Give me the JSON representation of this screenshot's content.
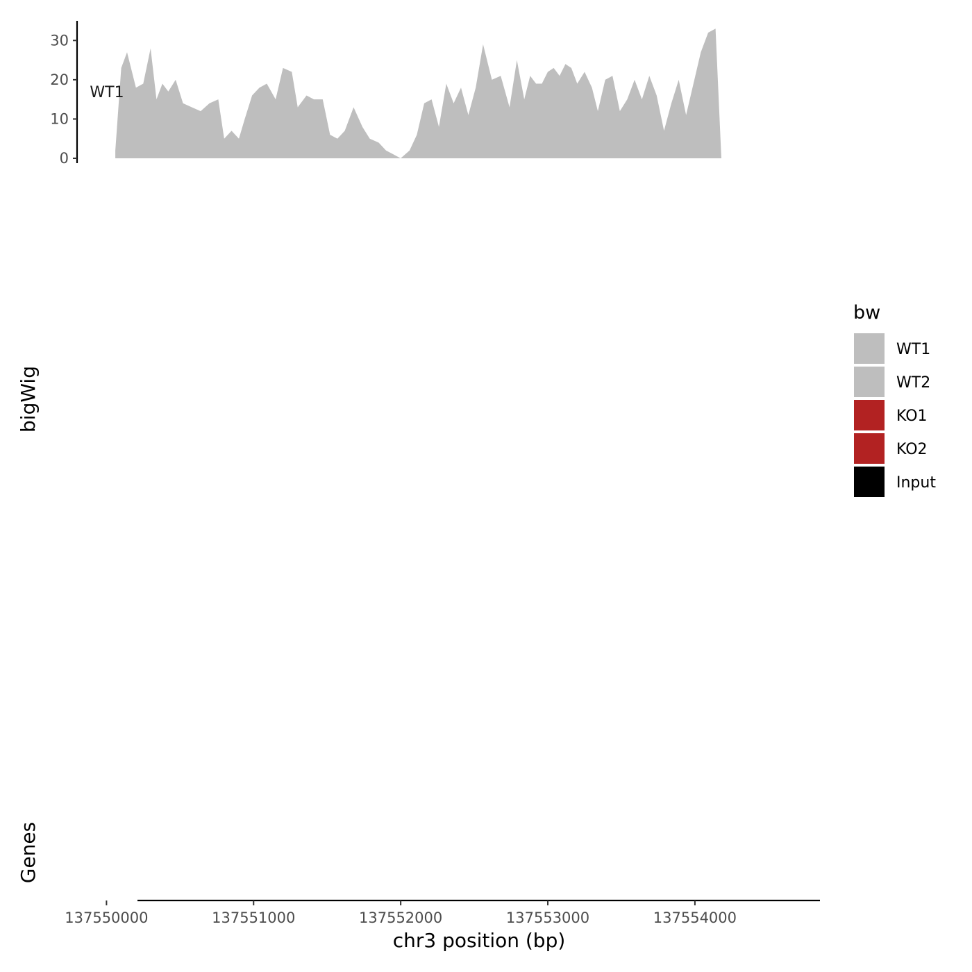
{
  "chart_data": {
    "type": "area",
    "title": "",
    "xlabel": "chr3 position (bp)",
    "ylabel": "bigWig",
    "xlim": [
      137549800,
      137554850
    ],
    "ylim": [
      0,
      35
    ],
    "x_ticks": [
      137550000,
      137551000,
      137552000,
      137553000,
      137554000
    ],
    "x_tick_labels": [
      "137550000",
      "137551000",
      "137552000",
      "137553000",
      "137554000"
    ],
    "y_ticks": [
      0,
      10,
      20,
      30
    ],
    "y_tick_labels": [
      "0",
      "10",
      "20",
      "30"
    ],
    "legend": {
      "title": "bw",
      "position": "right",
      "entries": [
        {
          "label": "WT1",
          "color": "#bebebe"
        },
        {
          "label": "WT2",
          "color": "#bebebe"
        },
        {
          "label": "KO1",
          "color": "#b22222"
        },
        {
          "label": "KO2",
          "color": "#b22222"
        },
        {
          "label": "Input",
          "color": "#000000"
        }
      ]
    },
    "series": [
      {
        "name": "WT1",
        "color": "#bebebe",
        "x": [
          137550060,
          137550100,
          137550140,
          137550200,
          137550250,
          137550300,
          137550340,
          137550380,
          137550420,
          137550470,
          137550520,
          137550580,
          137550640,
          137550700,
          137550760,
          137550800,
          137550850,
          137550900,
          137550940,
          137550990,
          137551040,
          137551090,
          137551150,
          137551200,
          137551260,
          137551300,
          137551360,
          137551410,
          137551470,
          137551520,
          137551570,
          137551620,
          137551680,
          137551740,
          137551790,
          137551850,
          137551900,
          137551950,
          137552000,
          137552060,
          137552110,
          137552160,
          137552210,
          137552260,
          137552310,
          137552360,
          137552410,
          137552460,
          137552510,
          137552560,
          137552620,
          137552680,
          137552740,
          137552790,
          137552840,
          137552880,
          137552920,
          137552960,
          137553000,
          137553040,
          137553080,
          137553120,
          137553160,
          137553200,
          137553250,
          137553300,
          137553340,
          137553390,
          137553440,
          137553490,
          137553540,
          137553590,
          137553640,
          137553690,
          137553740,
          137553790,
          137553840,
          137553890,
          137553940,
          137553990,
          137554040,
          137554090,
          137554140,
          137554180,
          137554220,
          137554260,
          137554300,
          137554340,
          137554390,
          137554430,
          137554470,
          137554500,
          137554530,
          137554580
        ],
        "values": [
          2,
          23,
          27,
          18,
          19,
          28,
          15,
          19,
          17,
          20,
          14,
          13,
          12,
          14,
          15,
          5,
          7,
          5,
          10,
          16,
          18,
          19,
          15,
          23,
          22,
          13,
          16,
          15,
          15,
          6,
          5,
          7,
          13,
          8,
          5,
          4,
          2,
          1,
          0,
          2,
          6,
          14,
          15,
          8,
          19,
          14,
          18,
          11,
          18,
          29,
          20,
          21,
          13,
          25,
          15,
          21,
          19,
          19,
          22,
          23,
          21,
          24,
          23,
          19,
          22,
          18,
          12,
          20,
          21,
          12,
          15,
          20,
          15,
          21,
          16,
          7,
          14,
          20,
          11,
          19,
          27,
          32,
          33,
          0,
          0,
          0,
          0,
          0,
          0,
          0,
          0,
          0,
          0,
          0
        ],
        "note": "approximate, read from chart"
      }
    ]
  }
}
